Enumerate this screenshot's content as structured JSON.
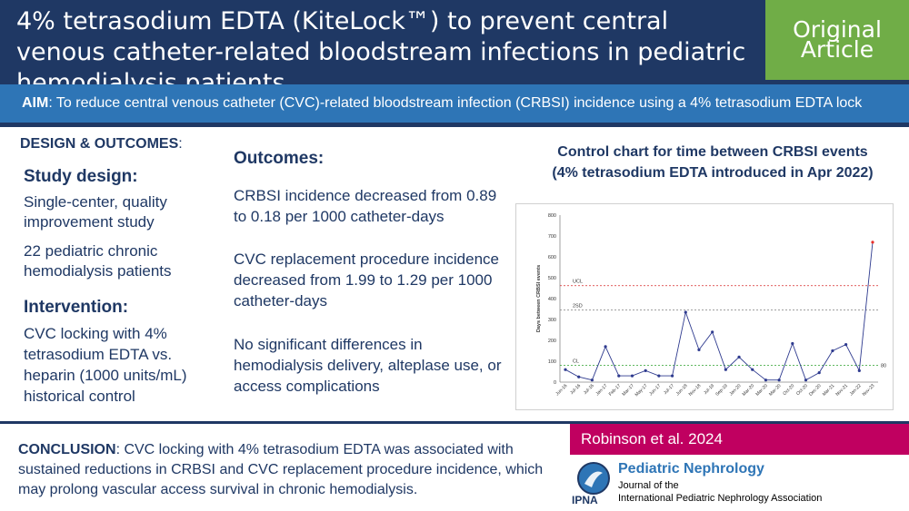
{
  "header": {
    "title": "4% tetrasodium EDTA (KiteLock™) to prevent central venous catheter-related bloodstream infections in pediatric hemodialysis patients",
    "badge_line1": "Original",
    "badge_line2": "Article"
  },
  "aim": {
    "label": "AIM",
    "text": ": To reduce central venous catheter (CVC)-related bloodstream infection (CRBSI) incidence using a 4% tetrasodium EDTA lock"
  },
  "design": {
    "heading": "DESIGN & OUTCOMES",
    "heading_colon": ":",
    "study_design_title": "Study design:",
    "study_design_1": "Single-center, quality improvement study",
    "study_design_2": "22 pediatric chronic hemodialysis patients",
    "intervention_title": "Intervention:",
    "intervention_text": "CVC locking with 4% tetrasodium EDTA vs. heparin (1000 units/mL) historical control"
  },
  "outcomes": {
    "title": "Outcomes:",
    "item1": "CRBSI incidence decreased from 0.89 to 0.18 per 1000 catheter-days",
    "item2": "CVC replacement procedure incidence decreased from 1.99 to 1.29 per 1000 catheter-days",
    "item3": "No significant differences in hemodialysis delivery, alteplase use, or access complications"
  },
  "chart_title_line1": "Control chart for time between CRBSI events",
  "chart_title_line2": "(4% tetrasodium EDTA introduced in Apr 2022)",
  "chart_data": {
    "type": "line",
    "ylabel": "Days between CRBSI events",
    "ylim": [
      0,
      800
    ],
    "yticks": [
      "0",
      "100",
      "200",
      "300",
      "400",
      "500",
      "600",
      "700",
      "800"
    ],
    "x": [
      "Jun-16",
      "Jul-16",
      "Jul-16",
      "Jan-17",
      "Feb-17",
      "Mar-17",
      "May-17",
      "Jun-17",
      "Jul-17",
      "Jun-18",
      "Nov-18",
      "Jul-19",
      "Sep-19",
      "Jan-20",
      "Mar-20",
      "Mar-20",
      "Mar-20",
      "Oct-20",
      "Oct-20",
      "Dec-20",
      "Mar-21",
      "Nov-21",
      "Jan-22",
      "Nov-23"
    ],
    "y": [
      60,
      25,
      10,
      170,
      30,
      30,
      55,
      30,
      30,
      335,
      155,
      240,
      60,
      120,
      60,
      10,
      10,
      185,
      10,
      45,
      150,
      180,
      55,
      670
    ],
    "lines": [
      {
        "label": "UCL",
        "value": 462,
        "color": "#d62728"
      },
      {
        "label": "2SD",
        "value": 345,
        "color": "#7f7f7f"
      },
      {
        "label": "CL",
        "value": 80,
        "color": "#2ca02c"
      }
    ],
    "cl_value_label": "80",
    "series_color": "#2f3b8f",
    "last_point_color": "#e8302b"
  },
  "conclusion": {
    "label": "CONCLUSION",
    "text": ": CVC locking with 4% tetrasodium EDTA was associated with sustained reductions in CRBSI and CVC replacement procedure incidence, which may prolong vascular access survival in chronic hemodialysis."
  },
  "citation": "Robinson et al. 2024",
  "journal": {
    "name": "Pediatric Nephrology",
    "sub1": "Journal of the",
    "sub2": "International Pediatric Nephrology Association",
    "logo_text": "IPNA"
  },
  "colors": {
    "navy": "#1f3864",
    "green": "#70ad47",
    "blue": "#2e75b6",
    "magenta": "#c00060"
  }
}
